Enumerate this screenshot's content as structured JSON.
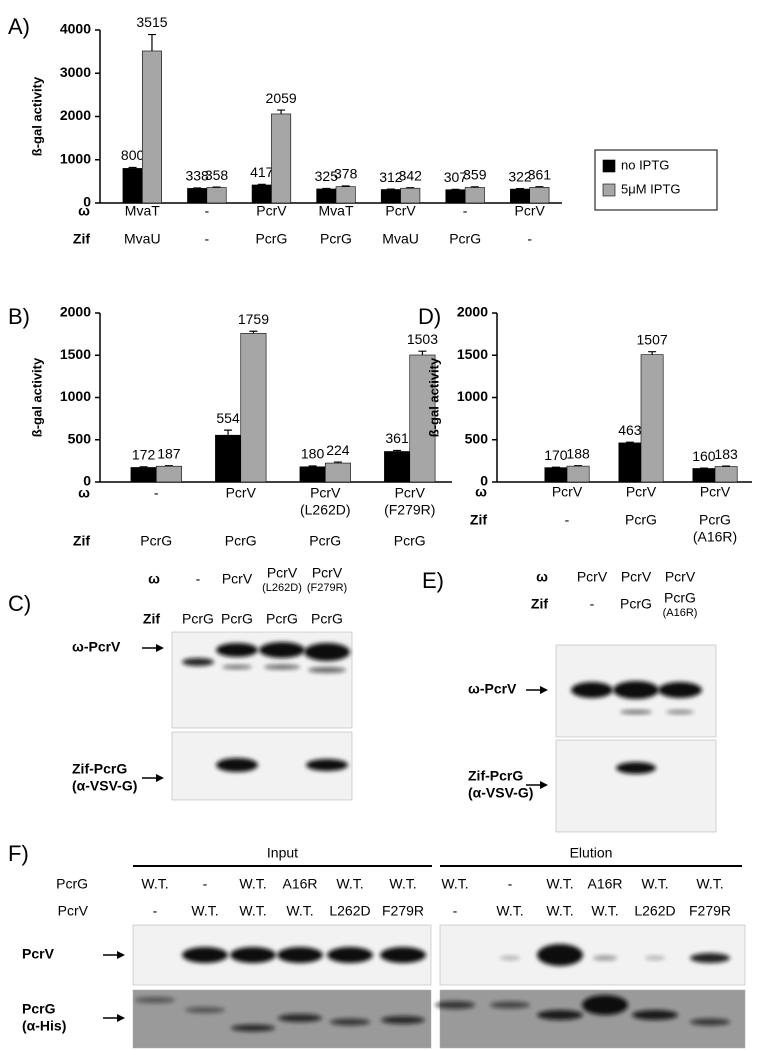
{
  "chart_data": [
    {
      "type": "bar",
      "label": "A)",
      "ylabel": "ß-gal activity",
      "ylim": [
        0,
        4000
      ],
      "yticks": [
        0,
        1000,
        2000,
        3000,
        4000
      ],
      "legend": "right",
      "category_rows": [
        {
          "name": "ω",
          "labels": [
            [
              "MvaT"
            ],
            [
              "-"
            ],
            [
              "PcrV"
            ],
            [
              "MvaT"
            ],
            [
              "PcrV"
            ],
            [
              "-"
            ],
            [
              "PcrV"
            ]
          ]
        },
        {
          "name": "Zif",
          "labels": [
            [
              "MvaU"
            ],
            [
              "-"
            ],
            [
              "PcrG"
            ],
            [
              "PcrG"
            ],
            [
              "MvaU"
            ],
            [
              "PcrG"
            ],
            [
              "-"
            ]
          ]
        }
      ],
      "series": [
        {
          "name": "no IPTG",
          "color": "#000000",
          "values": [
            800,
            338,
            417,
            325,
            312,
            307,
            322
          ],
          "errors": [
            20,
            10,
            15,
            10,
            10,
            10,
            10
          ]
        },
        {
          "name": "5μM IPTG",
          "color": "#a6a6a6",
          "values": [
            3515,
            358,
            2059,
            378,
            342,
            359,
            361
          ],
          "errors": [
            380,
            10,
            90,
            15,
            10,
            15,
            15
          ]
        }
      ]
    },
    {
      "type": "bar",
      "label": "B)",
      "ylabel": "ß-gal activity",
      "ylim": [
        0,
        2000
      ],
      "yticks": [
        0,
        500,
        1000,
        1500,
        2000
      ],
      "category_rows": [
        {
          "name": "ω",
          "labels": [
            [
              "-"
            ],
            [
              "PcrV"
            ],
            [
              "PcrV",
              "(L262D)"
            ],
            [
              "PcrV",
              "(F279R)"
            ]
          ]
        },
        {
          "name": "Zif",
          "labels": [
            [
              "PcrG"
            ],
            [
              "PcrG"
            ],
            [
              "PcrG"
            ],
            [
              "PcrG"
            ]
          ]
        }
      ],
      "series": [
        {
          "name": "no IPTG",
          "color": "#000000",
          "values": [
            172,
            554,
            180,
            361
          ],
          "errors": [
            8,
            60,
            10,
            12
          ]
        },
        {
          "name": "5μM IPTG",
          "color": "#a6a6a6",
          "values": [
            187,
            1759,
            224,
            1503
          ],
          "errors": [
            5,
            25,
            12,
            45
          ]
        }
      ]
    },
    {
      "type": "bar",
      "label": "D)",
      "ylabel": "ß-gal activity",
      "ylim": [
        0,
        2000
      ],
      "yticks": [
        0,
        500,
        1000,
        1500,
        2000
      ],
      "category_rows": [
        {
          "name": "ω",
          "labels": [
            [
              "PcrV"
            ],
            [
              "PcrV"
            ],
            [
              "PcrV"
            ]
          ]
        },
        {
          "name": "Zif",
          "labels": [
            [
              "-"
            ],
            [
              "PcrG"
            ],
            [
              "PcrG",
              "(A16R)"
            ]
          ]
        }
      ],
      "series": [
        {
          "name": "no IPTG",
          "color": "#000000",
          "values": [
            170,
            463,
            160
          ],
          "errors": [
            5,
            8,
            5
          ]
        },
        {
          "name": "5μM IPTG",
          "color": "#a6a6a6",
          "values": [
            188,
            1507,
            183
          ],
          "errors": [
            5,
            35,
            5
          ]
        }
      ]
    }
  ],
  "blots": [
    {
      "label": "C)",
      "rows": [
        {
          "name": "ω",
          "lanes": [
            [
              "-"
            ],
            [
              "PcrV"
            ],
            [
              "PcrV",
              "(L262D)"
            ],
            [
              "PcrV",
              "(F279R)"
            ]
          ]
        },
        {
          "name": "Zif",
          "lanes": [
            [
              "PcrG"
            ],
            [
              "PcrG"
            ],
            [
              "PcrG"
            ],
            [
              "PcrG"
            ]
          ]
        }
      ],
      "strips": [
        [
          "ω-PcrV"
        ],
        [
          "Zif-PcrG",
          "(α-VSV-G)"
        ]
      ]
    },
    {
      "label": "E)",
      "rows": [
        {
          "name": "ω",
          "lanes": [
            [
              "PcrV"
            ],
            [
              "PcrV"
            ],
            [
              "PcrV"
            ]
          ]
        },
        {
          "name": "Zif",
          "lanes": [
            [
              "-"
            ],
            [
              "PcrG"
            ],
            [
              "PcrG",
              "(A16R)"
            ]
          ]
        }
      ],
      "strips": [
        [
          "ω-PcrV"
        ],
        [
          "Zif-PcrG",
          "(α-VSV-G)"
        ]
      ]
    },
    {
      "label": "F)",
      "groups": [
        "Input",
        "Elution"
      ],
      "rows": [
        {
          "name": "PcrG",
          "lanes": [
            [
              "W.T."
            ],
            [
              "-"
            ],
            [
              "W.T."
            ],
            [
              "A16R"
            ],
            [
              "W.T."
            ],
            [
              "W.T."
            ],
            [
              "W.T."
            ],
            [
              "-"
            ],
            [
              "W.T."
            ],
            [
              "A16R"
            ],
            [
              "W.T."
            ],
            [
              "W.T."
            ]
          ]
        },
        {
          "name": "PcrV",
          "lanes": [
            [
              "-"
            ],
            [
              "W.T."
            ],
            [
              "W.T."
            ],
            [
              "W.T."
            ],
            [
              "L262D"
            ],
            [
              "F279R"
            ],
            [
              "-"
            ],
            [
              "W.T."
            ],
            [
              "W.T."
            ],
            [
              "W.T."
            ],
            [
              "L262D"
            ],
            [
              "F279R"
            ]
          ]
        }
      ],
      "strips": [
        [
          "PcrV"
        ],
        [
          "PcrG",
          "(α-His)"
        ]
      ]
    }
  ]
}
